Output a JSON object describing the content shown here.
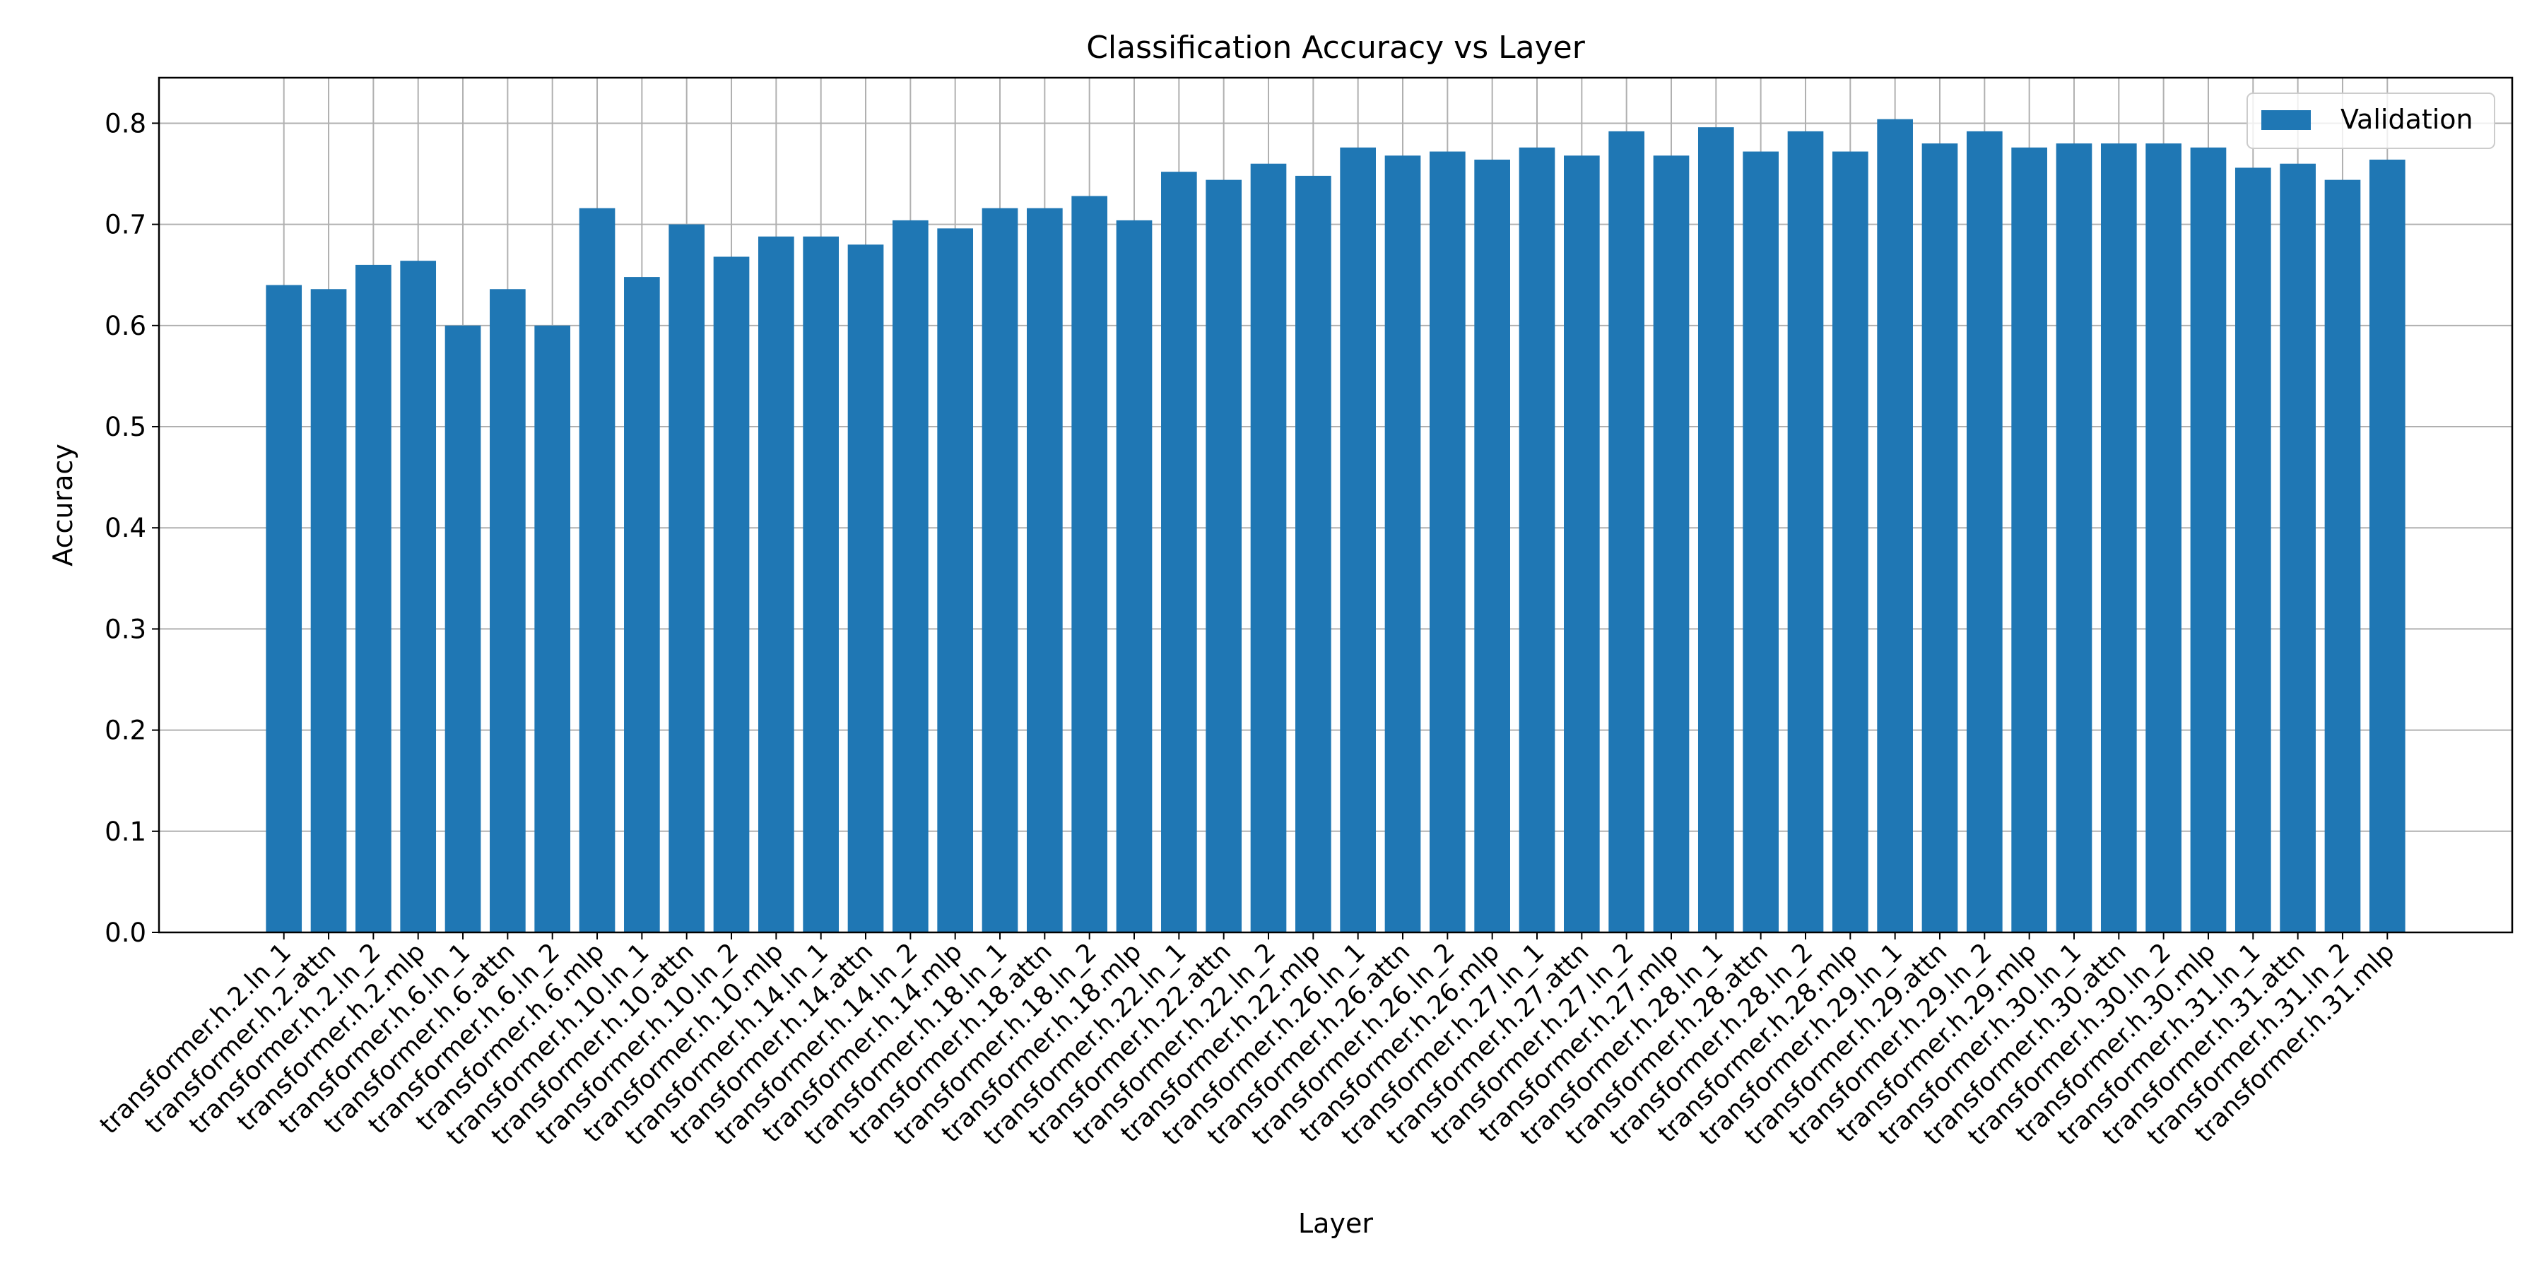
{
  "chart_data": {
    "type": "bar",
    "title": "Classification Accuracy vs Layer",
    "xlabel": "Layer",
    "ylabel": "Accuracy",
    "ylim": [
      0,
      0.845
    ],
    "yticks": [
      "0.0",
      "0.1",
      "0.2",
      "0.3",
      "0.4",
      "0.5",
      "0.6",
      "0.7",
      "0.8"
    ],
    "grid": true,
    "legend_position": "top-right",
    "bar_color": "#1f77b4",
    "categories": [
      "transformer.h.2.ln_1",
      "transformer.h.2.attn",
      "transformer.h.2.ln_2",
      "transformer.h.2.mlp",
      "transformer.h.6.ln_1",
      "transformer.h.6.attn",
      "transformer.h.6.ln_2",
      "transformer.h.6.mlp",
      "transformer.h.10.ln_1",
      "transformer.h.10.attn",
      "transformer.h.10.ln_2",
      "transformer.h.10.mlp",
      "transformer.h.14.ln_1",
      "transformer.h.14.attn",
      "transformer.h.14.ln_2",
      "transformer.h.14.mlp",
      "transformer.h.18.ln_1",
      "transformer.h.18.attn",
      "transformer.h.18.ln_2",
      "transformer.h.18.mlp",
      "transformer.h.22.ln_1",
      "transformer.h.22.attn",
      "transformer.h.22.ln_2",
      "transformer.h.22.mlp",
      "transformer.h.26.ln_1",
      "transformer.h.26.attn",
      "transformer.h.26.ln_2",
      "transformer.h.26.mlp",
      "transformer.h.27.ln_1",
      "transformer.h.27.attn",
      "transformer.h.27.ln_2",
      "transformer.h.27.mlp",
      "transformer.h.28.ln_1",
      "transformer.h.28.attn",
      "transformer.h.28.ln_2",
      "transformer.h.28.mlp",
      "transformer.h.29.ln_1",
      "transformer.h.29.attn",
      "transformer.h.29.ln_2",
      "transformer.h.29.mlp",
      "transformer.h.30.ln_1",
      "transformer.h.30.attn",
      "transformer.h.30.ln_2",
      "transformer.h.30.mlp",
      "transformer.h.31.ln_1",
      "transformer.h.31.attn",
      "transformer.h.31.ln_2",
      "transformer.h.31.mlp"
    ],
    "series": [
      {
        "name": "Validation",
        "values": [
          0.64,
          0.636,
          0.66,
          0.664,
          0.6,
          0.636,
          0.6,
          0.716,
          0.648,
          0.7,
          0.668,
          0.688,
          0.688,
          0.68,
          0.704,
          0.696,
          0.716,
          0.716,
          0.728,
          0.704,
          0.752,
          0.744,
          0.76,
          0.748,
          0.776,
          0.768,
          0.772,
          0.764,
          0.776,
          0.768,
          0.792,
          0.768,
          0.796,
          0.772,
          0.792,
          0.772,
          0.804,
          0.78,
          0.792,
          0.776,
          0.78,
          0.78,
          0.78,
          0.776,
          0.756,
          0.76,
          0.744,
          0.764
        ]
      }
    ]
  }
}
